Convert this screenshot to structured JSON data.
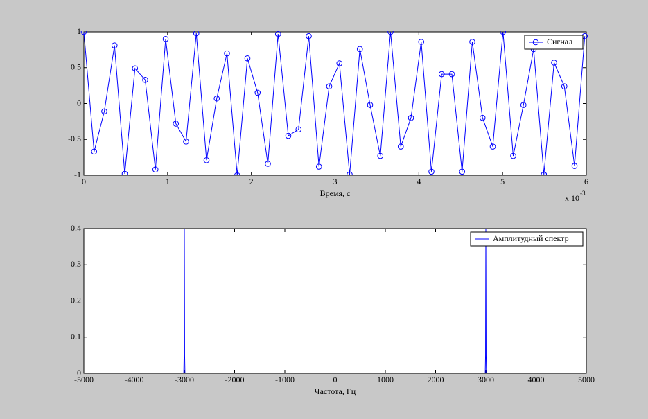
{
  "chart_data": [
    {
      "type": "line",
      "xlabel": "Время,  с",
      "x_multiplier": {
        "base": "x 10",
        "exponent": "-3"
      },
      "xlim": [
        0,
        0.006
      ],
      "ylim": [
        -1,
        1
      ],
      "xticks": [
        {
          "value": 0,
          "label": "0"
        },
        {
          "value": 0.001,
          "label": "1"
        },
        {
          "value": 0.002,
          "label": "2"
        },
        {
          "value": 0.003,
          "label": "3"
        },
        {
          "value": 0.004,
          "label": "4"
        },
        {
          "value": 0.005,
          "label": "5"
        },
        {
          "value": 0.006,
          "label": "6"
        }
      ],
      "yticks": [
        -1,
        -0.5,
        0,
        0.5,
        1
      ],
      "legend": "upper right",
      "marker": "circle",
      "x": [
        0,
        0.0001221,
        0.0002441,
        0.0003662,
        0.0004883,
        0.0006104,
        0.0007324,
        0.0008545,
        0.0009766,
        0.0010986,
        0.0012207,
        0.0013428,
        0.0014648,
        0.0015869,
        0.001709,
        0.0018311,
        0.0019531,
        0.0020752,
        0.0021973,
        0.0023193,
        0.0024414,
        0.0025635,
        0.0026855,
        0.0028076,
        0.0029297,
        0.0030518,
        0.0031738,
        0.0032959,
        0.003418,
        0.00354,
        0.0036621,
        0.0037842,
        0.0039063,
        0.0040283,
        0.0041504,
        0.0042725,
        0.0043945,
        0.0045166,
        0.0046387,
        0.0047607,
        0.0048828,
        0.0050049,
        0.005127,
        0.005249,
        0.0053711,
        0.0054932,
        0.0056152,
        0.0057373,
        0.0058594,
        0.0059814
      ],
      "series": [
        {
          "name": "Сигнал",
          "color": "#0000ff",
          "values": [
            1,
            -0.67,
            -0.11,
            0.81,
            -0.98,
            0.49,
            0.33,
            -0.92,
            0.9,
            -0.28,
            -0.53,
            0.98,
            -0.79,
            0.07,
            0.7,
            -1,
            0.63,
            0.15,
            -0.84,
            0.97,
            -0.45,
            -0.36,
            0.94,
            -0.88,
            0.24,
            0.56,
            -0.99,
            0.76,
            -0.02,
            -0.73,
            1,
            -0.6,
            -0.2,
            0.86,
            -0.95,
            0.41,
            0.41,
            -0.95,
            0.86,
            -0.2,
            -0.6,
            1,
            -0.73,
            -0.02,
            0.76,
            -0.99,
            0.57,
            0.24,
            -0.87,
            0.94
          ]
        }
      ]
    },
    {
      "type": "line",
      "xlabel": "Частота,  Гц",
      "xlim": [
        -5000,
        5000
      ],
      "ylim": [
        0,
        0.4
      ],
      "xticks": [
        -5000,
        -4000,
        -3000,
        -2000,
        -1000,
        0,
        1000,
        2000,
        3000,
        4000,
        5000
      ],
      "yticks": [
        0,
        0.1,
        0.2,
        0.3,
        0.4
      ],
      "legend": "upper right",
      "x": [
        -4096,
        -3012,
        -3006,
        -3000,
        -2994,
        -2988,
        2988,
        2994,
        3000,
        3006,
        3012,
        4092
      ],
      "series": [
        {
          "name": "Амплитудный спектр",
          "color": "#0000ff",
          "values": [
            0,
            0,
            0.05,
            0.4,
            0.05,
            0,
            0,
            0.05,
            0.4,
            0.05,
            0,
            0
          ]
        }
      ]
    }
  ]
}
